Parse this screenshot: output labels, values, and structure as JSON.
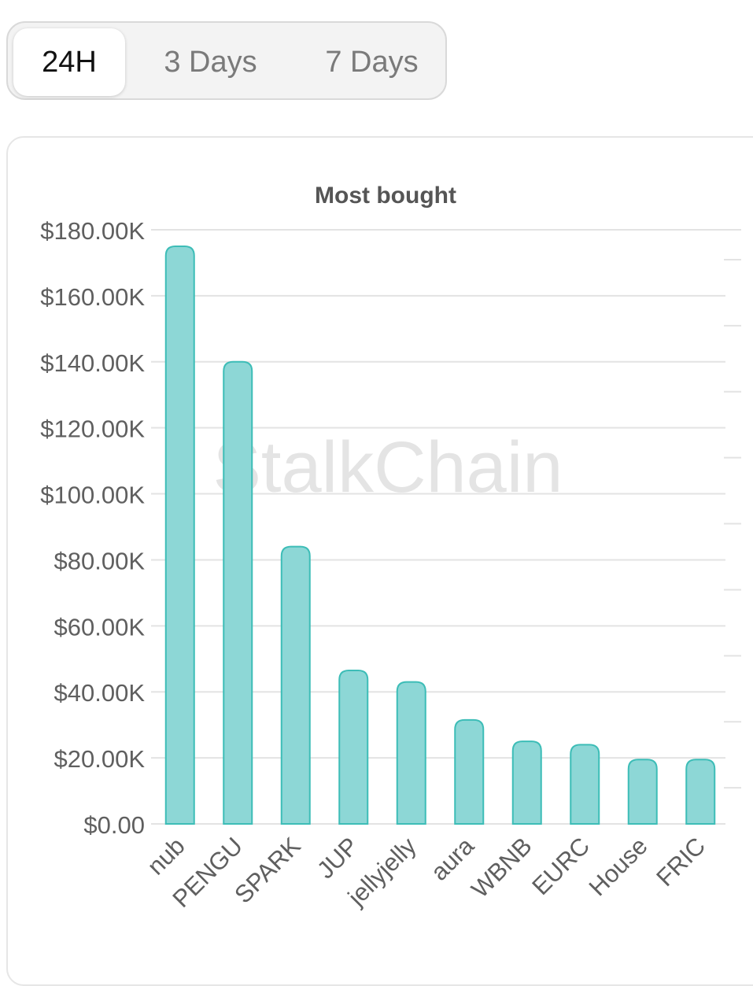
{
  "tabs": [
    {
      "label": "24H",
      "active": true
    },
    {
      "label": "3 Days",
      "active": false
    },
    {
      "label": "7 Days",
      "active": false
    }
  ],
  "watermark": "StalkChain",
  "chart_data": {
    "type": "bar",
    "title": "Most bought",
    "xlabel": "",
    "ylabel": "",
    "categories": [
      "nub",
      "PENGU",
      "SPARK",
      "JUP",
      "jellyjelly",
      "aura",
      "WBNB",
      "EURC",
      "House",
      "FRIC"
    ],
    "values": [
      175000,
      140000,
      84000,
      46500,
      43000,
      31500,
      25000,
      24000,
      19500,
      19500
    ],
    "ylim": [
      0,
      180000
    ],
    "yticks": [
      0,
      20000,
      40000,
      60000,
      80000,
      100000,
      120000,
      140000,
      160000,
      180000
    ],
    "ytick_labels": [
      "$0.00",
      "$20.00K",
      "$40.00K",
      "$60.00K",
      "$80.00K",
      "$100.00K",
      "$120.00K",
      "$140.00K",
      "$160.00K",
      "$180.00K"
    ],
    "grid": true,
    "bar_color": "#8dd7d6",
    "bar_border_color": "#3dbdb7",
    "grid_color": "#e3e3e3",
    "text_color": "#5f5f5f"
  }
}
